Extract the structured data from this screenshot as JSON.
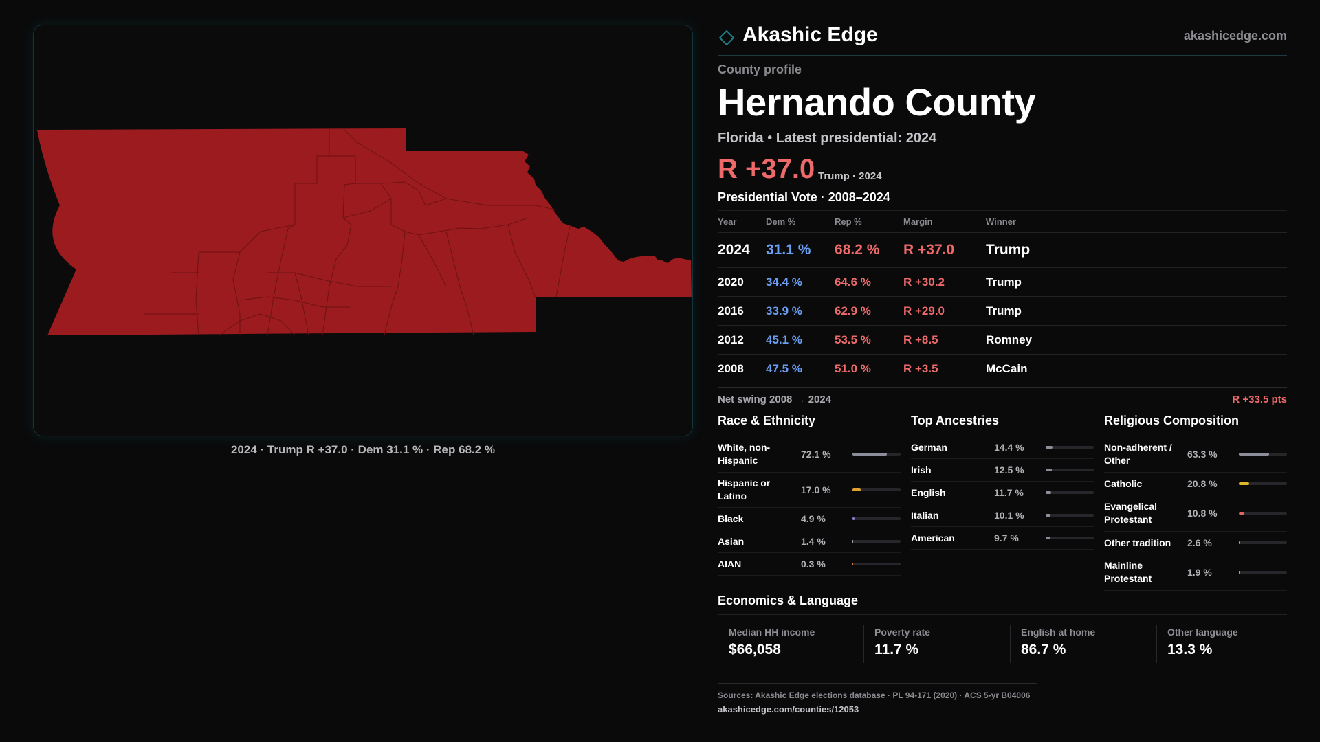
{
  "map": {
    "caption": "2024 · Trump R +37.0 · Dem 31.1 % · Rep 68.2 %",
    "fill_color": "#9b1b1e",
    "line_color": "#6e1214"
  },
  "brand": {
    "name": "Akashic Edge",
    "url": "akashicedge.com",
    "logo_icon": "diamond-icon"
  },
  "profile": {
    "label": "County profile",
    "county": "Hernando County",
    "state_line": "Florida • Latest presidential: 2024",
    "margin": "R +37.0",
    "margin_note": "Trump · 2024"
  },
  "vote_table": {
    "title": "Presidential Vote · 2008–2024",
    "headers": {
      "year": "Year",
      "dem": "Dem %",
      "rep": "Rep %",
      "margin": "Margin",
      "winner": "Winner"
    },
    "rows": [
      {
        "year": "2024",
        "dem": "31.1 %",
        "rep": "68.2 %",
        "margin": "R +37.0",
        "winner": "Trump"
      },
      {
        "year": "2020",
        "dem": "34.4 %",
        "rep": "64.6 %",
        "margin": "R +30.2",
        "winner": "Trump"
      },
      {
        "year": "2016",
        "dem": "33.9 %",
        "rep": "62.9 %",
        "margin": "R +29.0",
        "winner": "Trump"
      },
      {
        "year": "2012",
        "dem": "45.1 %",
        "rep": "53.5 %",
        "margin": "R +8.5",
        "winner": "Romney"
      },
      {
        "year": "2008",
        "dem": "47.5 %",
        "rep": "51.0 %",
        "margin": "R +3.5",
        "winner": "McCain"
      }
    ],
    "swing_label": "Net swing 2008 → 2024",
    "swing_value": "R +33.5 pts"
  },
  "race": {
    "title": "Race & Ethnicity",
    "items": [
      {
        "label": "White, non-Hispanic",
        "pct": "72.1 %",
        "value": 72.1,
        "color": "#8c8f99"
      },
      {
        "label": "Hispanic or Latino",
        "pct": "17.0 %",
        "value": 17.0,
        "color": "#e0a12e"
      },
      {
        "label": "Black",
        "pct": "4.9 %",
        "value": 4.9,
        "color": "#8a7fe0"
      },
      {
        "label": "Asian",
        "pct": "1.4 %",
        "value": 1.4,
        "color": "#a9a9ae"
      },
      {
        "label": "AIAN",
        "pct": "0.3 %",
        "value": 0.3,
        "color": "#e07a3a"
      }
    ]
  },
  "ancestry": {
    "title": "Top Ancestries",
    "items": [
      {
        "label": "German",
        "pct": "14.4 %",
        "value": 14.4,
        "color": "#8c8f99"
      },
      {
        "label": "Irish",
        "pct": "12.5 %",
        "value": 12.5,
        "color": "#8c8f99"
      },
      {
        "label": "English",
        "pct": "11.7 %",
        "value": 11.7,
        "color": "#8c8f99"
      },
      {
        "label": "Italian",
        "pct": "10.1 %",
        "value": 10.1,
        "color": "#8c8f99"
      },
      {
        "label": "American",
        "pct": "9.7 %",
        "value": 9.7,
        "color": "#8c8f99"
      }
    ]
  },
  "religion": {
    "title": "Religious Composition",
    "items": [
      {
        "label": "Non-adherent / Other",
        "pct": "63.3 %",
        "value": 63.3,
        "color": "#8c8f99"
      },
      {
        "label": "Catholic",
        "pct": "20.8 %",
        "value": 20.8,
        "color": "#e0b52e"
      },
      {
        "label": "Evangelical Protestant",
        "pct": "10.8 %",
        "value": 10.8,
        "color": "#e06464"
      },
      {
        "label": "Other tradition",
        "pct": "2.6 %",
        "value": 2.6,
        "color": "#a9a9ae"
      },
      {
        "label": "Mainline Protestant",
        "pct": "1.9 %",
        "value": 1.9,
        "color": "#a9a9ae"
      }
    ]
  },
  "economics": {
    "title": "Economics & Language",
    "items": [
      {
        "label": "Median HH income",
        "value": "$66,058"
      },
      {
        "label": "Poverty rate",
        "value": "11.7 %"
      },
      {
        "label": "English at home",
        "value": "86.7 %"
      },
      {
        "label": "Other language",
        "value": "13.3 %"
      }
    ]
  },
  "sources": {
    "line": "Sources: Akashic Edge elections database · PL 94-171 (2020) · ACS 5-yr B04006",
    "url": "akashicedge.com/counties/12053"
  }
}
